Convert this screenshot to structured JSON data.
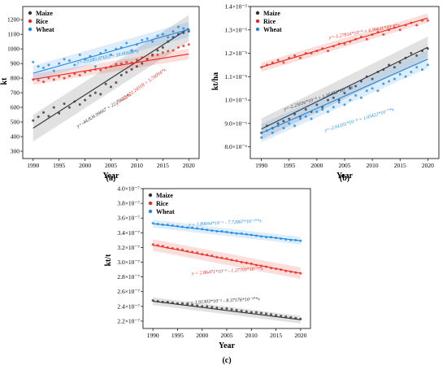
{
  "colors": {
    "Maize": "#333333",
    "Rice": "#e8291c",
    "Wheat": "#1e88e5"
  },
  "chart_data": [
    {
      "type": "scatter",
      "caption": "(a)",
      "xlabel": "Year",
      "ylabel": "kt",
      "xlim": [
        1988,
        2022
      ],
      "ylim": [
        250,
        1290
      ],
      "xticks": [
        1990,
        1995,
        2000,
        2005,
        2010,
        2015,
        2020
      ],
      "yticks": [
        300,
        400,
        500,
        600,
        700,
        800,
        900,
        1000,
        1100,
        1200
      ],
      "y_exponent": 0,
      "legend": "top-left",
      "series": [
        {
          "name": "Maize",
          "fit_intercept": -44826.99667,
          "fit_slope": 22.75622,
          "fit_label": "y=-44,826.99667 + 22.75622*x",
          "band": 70,
          "x": [
            1990,
            1991,
            1992,
            1993,
            1994,
            1995,
            1996,
            1997,
            1998,
            1999,
            2000,
            2001,
            2002,
            2003,
            2004,
            2005,
            2006,
            2007,
            2008,
            2009,
            2010,
            2011,
            2012,
            2013,
            2014,
            2015,
            2016,
            2017,
            2018,
            2019,
            2020
          ],
          "y": [
            510,
            535,
            565,
            540,
            600,
            560,
            625,
            600,
            640,
            620,
            650,
            680,
            700,
            690,
            760,
            740,
            770,
            820,
            840,
            860,
            880,
            900,
            930,
            960,
            990,
            1010,
            1050,
            1080,
            1100,
            1110,
            1120
          ]
        },
        {
          "name": "Rice",
          "fit_intercept": -10672.24318,
          "fit_slope": 5.76094,
          "fit_label": "y=-10,672.24318 + 5.76094*x",
          "band": 28,
          "x": [
            1990,
            1991,
            1992,
            1993,
            1994,
            1995,
            1996,
            1997,
            1998,
            1999,
            2000,
            2001,
            2002,
            2003,
            2004,
            2005,
            2006,
            2007,
            2008,
            2009,
            2010,
            2011,
            2012,
            2013,
            2014,
            2015,
            2016,
            2017,
            2018,
            2019,
            2020
          ],
          "y": [
            790,
            785,
            775,
            800,
            790,
            810,
            800,
            815,
            830,
            820,
            840,
            850,
            860,
            855,
            870,
            880,
            895,
            900,
            910,
            905,
            925,
            940,
            930,
            955,
            960,
            975,
            985,
            990,
            1010,
            1020,
            1030
          ]
        },
        {
          "name": "Wheat",
          "fit_intercept": -19085.87653,
          "fit_slope": 10.00958,
          "fit_label": "y=-19,085.87653 + 10.00958*x",
          "band": 40,
          "x": [
            1990,
            1991,
            1992,
            1993,
            1994,
            1995,
            1996,
            1997,
            1998,
            1999,
            2000,
            2001,
            2002,
            2003,
            2004,
            2005,
            2006,
            2007,
            2008,
            2009,
            2010,
            2011,
            2012,
            2013,
            2014,
            2015,
            2016,
            2017,
            2018,
            2019,
            2020
          ],
          "y": [
            910,
            880,
            870,
            890,
            850,
            900,
            930,
            920,
            890,
            960,
            930,
            950,
            880,
            970,
            990,
            960,
            1000,
            1010,
            1040,
            990,
            1030,
            1060,
            1070,
            1050,
            1090,
            1100,
            1080,
            1120,
            1150,
            1140,
            1130
          ]
        }
      ]
    },
    {
      "type": "scatter",
      "caption": "(b)",
      "xlabel": "Year",
      "ylabel": "kt/ha",
      "xlim": [
        1988,
        2022
      ],
      "ylim": [
        7.5e-06,
        1.4e-05
      ],
      "xticks": [
        1990,
        1995,
        2000,
        2005,
        2010,
        2015,
        2020
      ],
      "yticks": [
        8e-06,
        9e-06,
        1e-05,
        1.1e-05,
        1.2e-05,
        1.3e-05,
        1.4e-05
      ],
      "ytick_labels": [
        "8.0×10⁻⁶",
        "9.0×10⁻⁶",
        "1.0×10⁻⁵",
        "1.1×10⁻⁵",
        "1.2×10⁻⁵",
        "1.3×10⁻⁵",
        "1.4×10⁻⁵"
      ],
      "legend": "top-left",
      "series": [
        {
          "name": "Maize",
          "fit_intercept": -0.000223036,
          "fit_slope": 1.16482e-07,
          "fit_label": "y=-2.23036*10⁻⁴ + 1.16482*10⁻⁷*x",
          "band": 3.5e-07,
          "x": [
            1990,
            1991,
            1992,
            1993,
            1994,
            1995,
            1996,
            1997,
            1998,
            1999,
            2000,
            2001,
            2002,
            2003,
            2004,
            2005,
            2006,
            2007,
            2008,
            2009,
            2010,
            2011,
            2012,
            2013,
            2014,
            2015,
            2016,
            2017,
            2018,
            2019,
            2020
          ],
          "y": [
            8.6e-06,
            8.9e-06,
            8.8e-06,
            9e-06,
            9.1e-06,
            9.2e-06,
            9.4e-06,
            9.3e-06,
            9.6e-06,
            9.5e-06,
            9.8e-06,
            9.7e-06,
            1e-05,
            1.01e-05,
            1e-05,
            1.03e-05,
            1.05e-05,
            1.06e-05,
            1.08e-05,
            1.1e-05,
            1.09e-05,
            1.12e-05,
            1.13e-05,
            1.15e-05,
            1.14e-05,
            1.16e-05,
            1.18e-05,
            1.2e-05,
            1.19e-05,
            1.21e-05,
            1.22e-05
          ]
        },
        {
          "name": "Rice",
          "fit_intercept": -0.000127814,
          "fit_slope": 6.99611e-08,
          "fit_label": "y=-1.27814*10⁻⁴ + 6.99611*10⁻⁸*x",
          "band": 1.5e-07,
          "x": [
            1990,
            1991,
            1992,
            1993,
            1994,
            1995,
            1996,
            1997,
            1998,
            1999,
            2000,
            2001,
            2002,
            2003,
            2004,
            2005,
            2006,
            2007,
            2008,
            2009,
            2010,
            2011,
            2012,
            2013,
            2014,
            2015,
            2016,
            2017,
            2018,
            2019,
            2020
          ],
          "y": [
            1.14e-05,
            1.15e-05,
            1.16e-05,
            1.17e-05,
            1.16e-05,
            1.18e-05,
            1.19e-05,
            1.18e-05,
            1.2e-05,
            1.2e-05,
            1.21e-05,
            1.22e-05,
            1.21e-05,
            1.23e-05,
            1.24e-05,
            1.24e-05,
            1.25e-05,
            1.26e-05,
            1.27e-05,
            1.26e-05,
            1.28e-05,
            1.29e-05,
            1.28e-05,
            1.3e-05,
            1.31e-05,
            1.3e-05,
            1.32e-05,
            1.33e-05,
            1.32e-05,
            1.34e-05,
            1.34e-05
          ]
        },
        {
          "name": "Wheat",
          "fit_intercept": -0.000201201,
          "fit_slope": 1.05422e-07,
          "fit_label": "y=-2.01201*10⁻⁴ + 1.05422*10⁻⁷*x",
          "band": 3e-07,
          "x": [
            1990,
            1991,
            1992,
            1993,
            1994,
            1995,
            1996,
            1997,
            1998,
            1999,
            2000,
            2001,
            2002,
            2003,
            2004,
            2005,
            2006,
            2007,
            2008,
            2009,
            2010,
            2011,
            2012,
            2013,
            2014,
            2015,
            2016,
            2017,
            2018,
            2019,
            2020
          ],
          "y": [
            8.4e-06,
            8.7e-06,
            8.6e-06,
            8.9e-06,
            8.8e-06,
            9e-06,
            8.9e-06,
            9.2e-06,
            9.3e-06,
            9.2e-06,
            9.5e-06,
            9.6e-06,
            9.5e-06,
            9.7e-06,
            9.9e-06,
            9.8e-06,
            1e-05,
            1.02e-05,
            1.01e-05,
            1.04e-05,
            1.05e-05,
            1.04e-05,
            1.07e-05,
            1.08e-05,
            1.09e-05,
            1.11e-05,
            1.1e-05,
            1.12e-05,
            1.14e-05,
            1.13e-05,
            1.15e-05
          ]
        }
      ]
    },
    {
      "type": "scatter",
      "caption": "(c)",
      "xlabel": "Year",
      "ylabel": "kt/t",
      "xlim": [
        1988,
        2022
      ],
      "ylim": [
        2.1e-07,
        4e-07
      ],
      "xticks": [
        1990,
        1995,
        2000,
        2005,
        2010,
        2015,
        2020
      ],
      "yticks": [
        2.2e-07,
        2.4e-07,
        2.6e-07,
        2.8e-07,
        3e-07,
        3.2e-07,
        3.4e-07,
        3.6e-07,
        3.8e-07,
        4e-07
      ],
      "ytick_labels": [
        "2.2×10⁻⁷",
        "2.4×10⁻⁷",
        "2.6×10⁻⁷",
        "2.8×10⁻⁷",
        "3.0×10⁻⁷",
        "3.2×10⁻⁷",
        "3.4×10⁻⁷",
        "3.6×10⁻⁷",
        "3.8×10⁻⁷",
        "4.0×10⁻⁷"
      ],
      "legend": "top-left",
      "series": [
        {
          "name": "Maize",
          "fit_intercept": 1.91303e-06,
          "fit_slope": -8.37176e-10,
          "fit_label": "y = 1.91303*10⁻⁶ - 8.37176*10⁻¹⁰*x",
          "band": 4e-09,
          "x": [
            1990,
            1991,
            1992,
            1993,
            1994,
            1995,
            1996,
            1997,
            1998,
            1999,
            2000,
            2001,
            2002,
            2003,
            2004,
            2005,
            2006,
            2007,
            2008,
            2009,
            2010,
            2011,
            2012,
            2013,
            2014,
            2015,
            2016,
            2017,
            2018,
            2019,
            2020
          ],
          "y": [
            2.48e-07,
            2.47e-07,
            2.46e-07,
            2.46e-07,
            2.45e-07,
            2.44e-07,
            2.44e-07,
            2.43e-07,
            2.42e-07,
            2.41e-07,
            2.4e-07,
            2.4e-07,
            2.39e-07,
            2.38e-07,
            2.37e-07,
            2.37e-07,
            2.36e-07,
            2.35e-07,
            2.34e-07,
            2.33e-07,
            2.32e-07,
            2.32e-07,
            2.31e-07,
            2.3e-07,
            2.29e-07,
            2.28e-07,
            2.27e-07,
            2.26e-07,
            2.25e-07,
            2.24e-07,
            2.23e-07
          ]
        },
        {
          "name": "Rice",
          "fit_intercept": 2.86471e-06,
          "fit_slope": -1.27709e-09,
          "fit_label": "y = 2.86471*10⁻⁶ - 1.27709*10⁻⁹*x",
          "band": 6e-09,
          "x": [
            1990,
            1991,
            1992,
            1993,
            1994,
            1995,
            1996,
            1997,
            1998,
            1999,
            2000,
            2001,
            2002,
            2003,
            2004,
            2005,
            2006,
            2007,
            2008,
            2009,
            2010,
            2011,
            2012,
            2013,
            2014,
            2015,
            2016,
            2017,
            2018,
            2019,
            2020
          ],
          "y": [
            3.24e-07,
            3.23e-07,
            3.22e-07,
            3.2e-07,
            3.19e-07,
            3.18e-07,
            3.17e-07,
            3.15e-07,
            3.14e-07,
            3.13e-07,
            3.11e-07,
            3.1e-07,
            3.09e-07,
            3.07e-07,
            3.06e-07,
            3.05e-07,
            3.03e-07,
            3.02e-07,
            3e-07,
            2.99e-07,
            2.98e-07,
            2.96e-07,
            2.95e-07,
            2.94e-07,
            2.92e-07,
            2.91e-07,
            2.9e-07,
            2.88e-07,
            2.87e-07,
            2.86e-07,
            2.85e-07
          ]
        },
        {
          "name": "Wheat",
          "fit_intercept": 1.89044e-06,
          "fit_slope": -7.72867e-10,
          "fit_label": "y = 1.89044*10⁻⁶ - 7.72867*10⁻¹⁰*x",
          "band": 4e-09,
          "x": [
            1990,
            1991,
            1992,
            1993,
            1994,
            1995,
            1996,
            1997,
            1998,
            1999,
            2000,
            2001,
            2002,
            2003,
            2004,
            2005,
            2006,
            2007,
            2008,
            2009,
            2010,
            2011,
            2012,
            2013,
            2014,
            2015,
            2016,
            2017,
            2018,
            2019,
            2020
          ],
          "y": [
            3.53e-07,
            3.52e-07,
            3.51e-07,
            3.51e-07,
            3.5e-07,
            3.49e-07,
            3.48e-07,
            3.47e-07,
            3.47e-07,
            3.46e-07,
            3.45e-07,
            3.44e-07,
            3.43e-07,
            3.42e-07,
            3.42e-07,
            3.41e-07,
            3.4e-07,
            3.39e-07,
            3.39e-07,
            3.38e-07,
            3.37e-07,
            3.36e-07,
            3.35e-07,
            3.34e-07,
            3.34e-07,
            3.33e-07,
            3.32e-07,
            3.31e-07,
            3.3e-07,
            3.3e-07,
            3.29e-07
          ]
        }
      ]
    }
  ]
}
